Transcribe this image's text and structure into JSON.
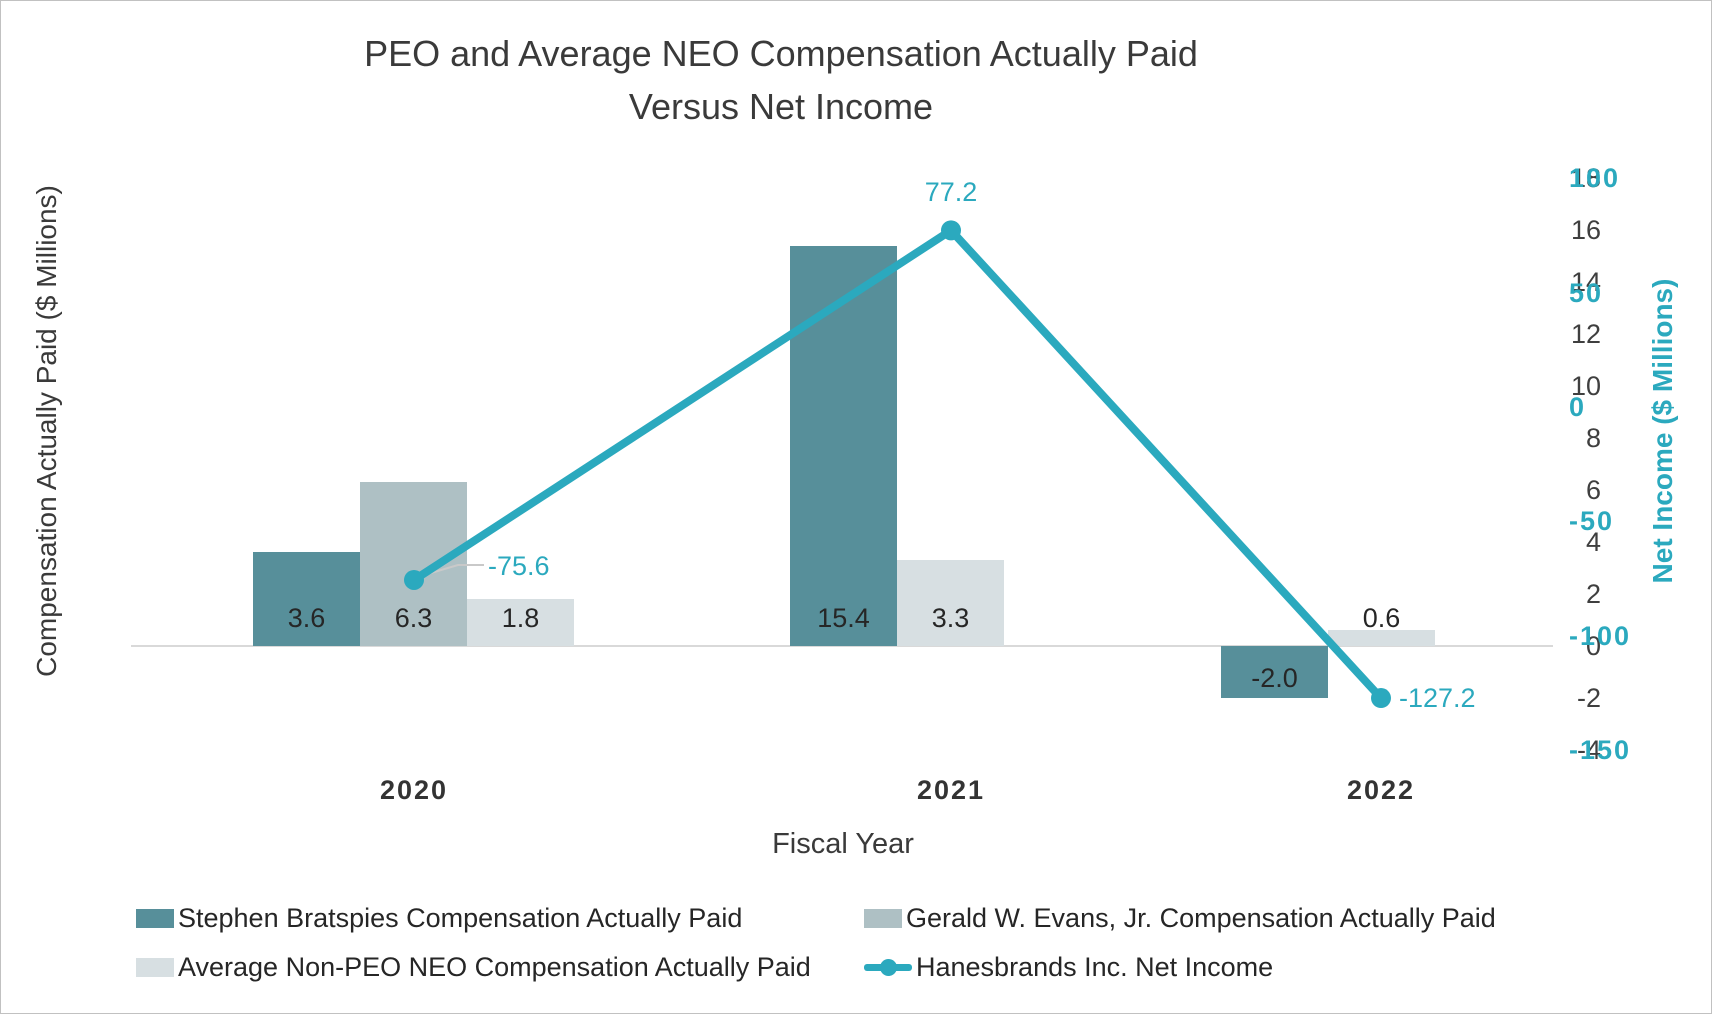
{
  "title": {
    "line1": "PEO and Average NEO Compensation Actually Paid",
    "line2": "Versus Net Income"
  },
  "chart_data": {
    "type": "combo bar+line",
    "categories": [
      "2020",
      "2021",
      "2022"
    ],
    "series": [
      {
        "name": "Stephen Bratspies Compensation Actually Paid",
        "type": "bar",
        "axis": "left",
        "color": "#578f9a",
        "values": [
          3.6,
          15.4,
          -2.0
        ],
        "labels": [
          "3.6",
          "15.4",
          "-2.0"
        ]
      },
      {
        "name": "Gerald W. Evans, Jr. Compensation Actually Paid",
        "type": "bar",
        "axis": "left",
        "color": "#aec0c4",
        "values": [
          6.3,
          null,
          null
        ],
        "labels": [
          "6.3",
          null,
          null
        ]
      },
      {
        "name": "Average Non-PEO NEO Compensation Actually Paid",
        "type": "bar",
        "axis": "left",
        "color": "#d7dfe2",
        "values": [
          1.8,
          3.3,
          0.6
        ],
        "labels": [
          "1.8",
          "3.3",
          "0.6"
        ]
      },
      {
        "name": "Hanesbrands Inc. Net Income",
        "type": "line",
        "axis": "right",
        "color": "#2ba9be",
        "values": [
          -75.6,
          77.2,
          -127.2
        ],
        "labels": [
          "-75.6",
          "77.2",
          "-127.2"
        ]
      }
    ],
    "xlabel": "Fiscal Year",
    "left_axis": {
      "title": "Compensation Actually Paid ($ Millions)",
      "ticks": [
        18,
        16,
        14,
        12,
        10,
        8,
        6,
        4,
        2,
        0,
        -2,
        -4
      ],
      "range": [
        -4,
        18
      ]
    },
    "right_axis": {
      "title": "Net Income ($ Millions)",
      "ticks": [
        100,
        50,
        0,
        -50,
        -100,
        -150
      ],
      "range": [
        -150,
        100
      ],
      "color": "#2ba9be"
    },
    "grid": "zero-line-only",
    "legend_position": "bottom"
  }
}
